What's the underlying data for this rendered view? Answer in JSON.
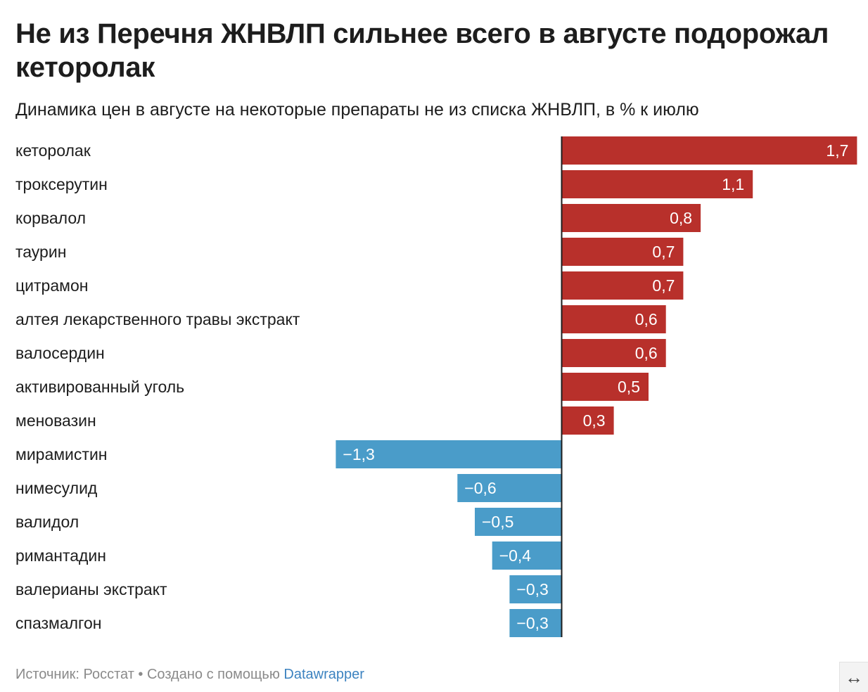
{
  "header": {
    "title": "Не из Перечня ЖНВЛП сильнее всего в августе подорожал кеторолак",
    "subtitle": "Динамика цен в августе на некоторые препараты не из списка ЖНВЛП, в % к июлю"
  },
  "footer": {
    "source_text": "Источник: Росстат • Создано с помощью ",
    "link_text": "Datawrapper"
  },
  "expand_icon": "↔",
  "colors": {
    "positive": "#b8302b",
    "negative": "#4a9cc9",
    "axis": "#1d1d1d"
  },
  "chart_data": {
    "type": "bar",
    "orientation": "horizontal",
    "categories": [
      "кеторолак",
      "троксерутин",
      "корвалол",
      "таурин",
      "цитрамон",
      "алтея лекарственного травы экстракт",
      "валосердин",
      "активированный уголь",
      "меновазин",
      "мирамистин",
      "нимесулид",
      "валидол",
      "римантадин",
      "валерианы экстракт",
      "спазмалгон"
    ],
    "values": [
      1.7,
      1.1,
      0.8,
      0.7,
      0.7,
      0.6,
      0.6,
      0.5,
      0.3,
      -1.3,
      -0.6,
      -0.5,
      -0.4,
      -0.3,
      -0.3
    ],
    "value_labels": [
      "1,7",
      "1,1",
      "0,8",
      "0,7",
      "0,7",
      "0,6",
      "0,6",
      "0,5",
      "0,3",
      "−1,3",
      "−0,6",
      "−0,5",
      "−0,4",
      "−0,3",
      "−0,3"
    ],
    "xlim": [
      -1.3,
      1.7
    ],
    "grid": false,
    "legend": "none"
  }
}
